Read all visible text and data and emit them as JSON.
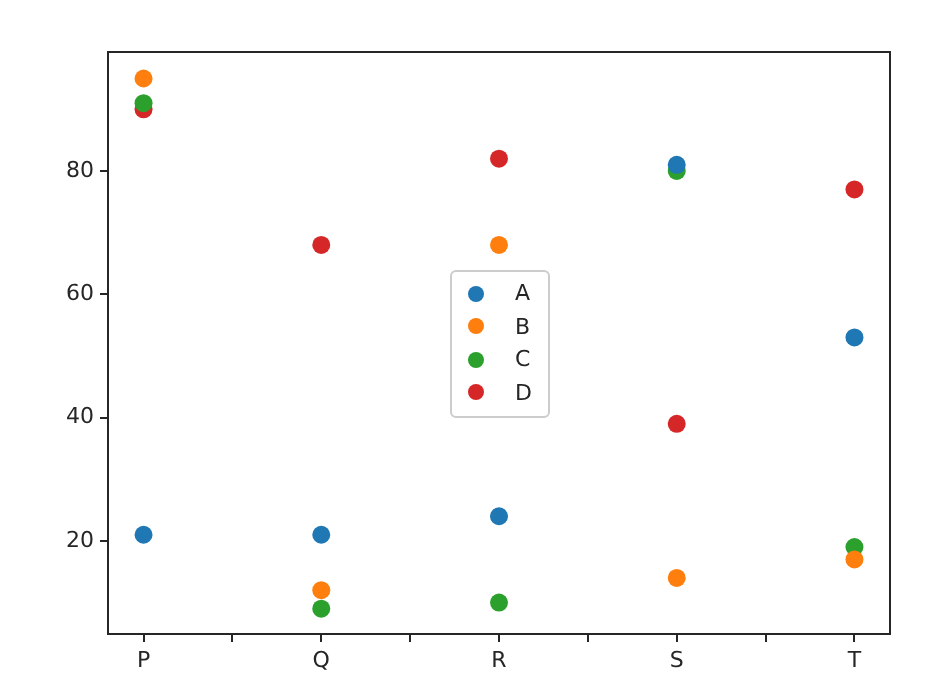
{
  "chart_data": {
    "type": "scatter",
    "marker": "circle",
    "grid": false,
    "legend": "center",
    "categories": [
      "P",
      "Q",
      "R",
      "S",
      "T"
    ],
    "ylim": [
      4.9,
      99.3
    ],
    "yticks": [
      20,
      40,
      60,
      80
    ],
    "series": [
      {
        "name": "A",
        "color": "#1f77b4",
        "values": [
          21,
          21,
          24,
          81,
          53
        ]
      },
      {
        "name": "B",
        "color": "#ff7f0e",
        "values": [
          95,
          12,
          68,
          14,
          17
        ]
      },
      {
        "name": "C",
        "color": "#2ca02c",
        "values": [
          91,
          9,
          10,
          80,
          19
        ]
      },
      {
        "name": "D",
        "color": "#d62728",
        "values": [
          90,
          68,
          82,
          39,
          77
        ]
      }
    ]
  }
}
